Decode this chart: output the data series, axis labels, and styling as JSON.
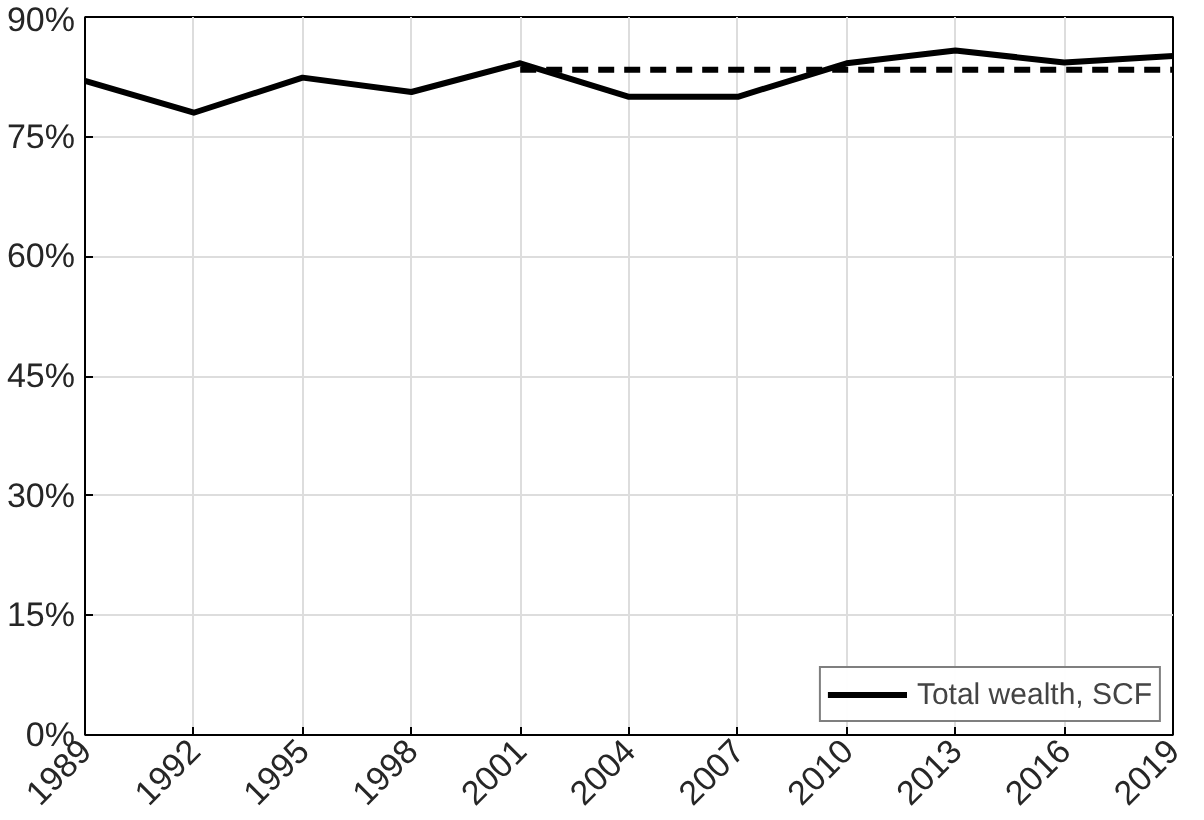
{
  "chart_data": {
    "type": "line",
    "x": [
      1989,
      1992,
      1995,
      1998,
      2001,
      2004,
      2007,
      2010,
      2013,
      2016,
      2019
    ],
    "series": [
      {
        "name": "Total wealth, SCF",
        "color": "#000000",
        "line_style": "solid",
        "values": [
          82.0,
          78.0,
          82.4,
          80.6,
          84.2,
          80.0,
          80.0,
          84.2,
          85.8,
          84.3,
          85.1
        ]
      },
      {
        "color": "#000000",
        "line_style": "dashed",
        "x": [
          2001,
          2019
        ],
        "values": [
          83.4,
          83.4
        ]
      }
    ],
    "xlim": [
      1989,
      2019
    ],
    "xticks": [
      1989,
      1992,
      1995,
      1998,
      2001,
      2004,
      2007,
      2010,
      2013,
      2016,
      2019
    ],
    "ylim": [
      0,
      90
    ],
    "yticks": [
      {
        "value": 0,
        "label": "0%"
      },
      {
        "value": 15,
        "label": "15%"
      },
      {
        "value": 30,
        "label": "30%"
      },
      {
        "value": 45,
        "label": "45%"
      },
      {
        "value": 60,
        "label": "60%"
      },
      {
        "value": 75,
        "label": "75%"
      },
      {
        "value": 90,
        "label": "90%"
      }
    ],
    "grid": true,
    "legend": "bottom right",
    "marker": "none"
  }
}
